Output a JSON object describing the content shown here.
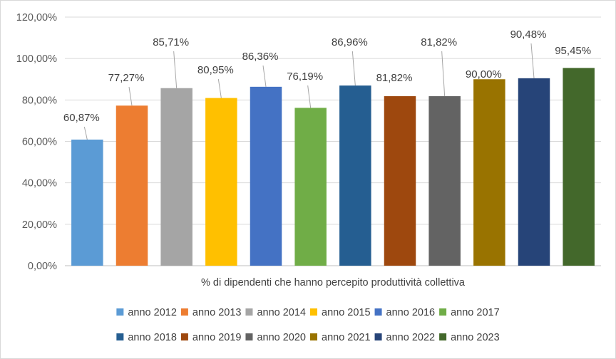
{
  "chart_data": {
    "type": "bar",
    "title": "",
    "xlabel": "% di dipendenti che hanno percepito produttività collettiva",
    "ylabel": "",
    "ylim": [
      0,
      120
    ],
    "yticks": [
      "0,00%",
      "20,00%",
      "40,00%",
      "60,00%",
      "80,00%",
      "100,00%",
      "120,00%"
    ],
    "grid": "horizontal",
    "legend_position": "bottom",
    "series": [
      {
        "name": "anno 2012",
        "value": 60.87,
        "label": "60,87%",
        "color": "#5B9BD5"
      },
      {
        "name": "anno 2013",
        "value": 77.27,
        "label": "77,27%",
        "color": "#ED7D31"
      },
      {
        "name": "anno 2014",
        "value": 85.71,
        "label": "85,71%",
        "color": "#A5A5A5"
      },
      {
        "name": "anno 2015",
        "value": 80.95,
        "label": "80,95%",
        "color": "#FFC000"
      },
      {
        "name": "anno 2016",
        "value": 86.36,
        "label": "86,36%",
        "color": "#4472C4"
      },
      {
        "name": "anno 2017",
        "value": 76.19,
        "label": "76,19%",
        "color": "#70AD47"
      },
      {
        "name": "anno 2018",
        "value": 86.96,
        "label": "86,96%",
        "color": "#255E91"
      },
      {
        "name": "anno 2019",
        "value": 81.82,
        "label": "81,82%",
        "color": "#9E480E"
      },
      {
        "name": "anno 2020",
        "value": 81.82,
        "label": "81,82%",
        "color": "#636363"
      },
      {
        "name": "anno 2021",
        "value": 90.0,
        "label": "90,00%",
        "color": "#997300"
      },
      {
        "name": "anno 2022",
        "value": 90.48,
        "label": "90,48%",
        "color": "#264478"
      },
      {
        "name": "anno 2023",
        "value": 95.45,
        "label": "95,45%",
        "color": "#43682B"
      }
    ]
  }
}
